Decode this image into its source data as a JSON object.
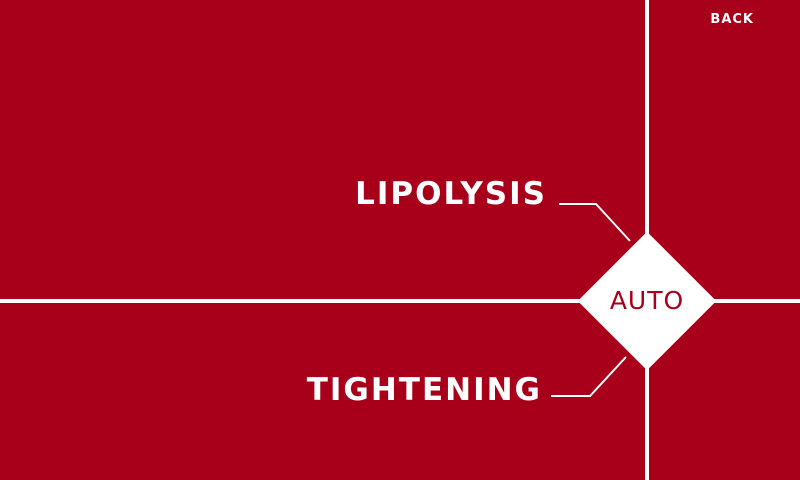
{
  "header": {
    "back_label": "BACK"
  },
  "modes": {
    "upper_label": "LIPOLYSIS",
    "lower_label": "TIGHTENING",
    "center_label": "AUTO"
  },
  "colors": {
    "background": "#a8001a",
    "foreground": "#ffffff"
  }
}
